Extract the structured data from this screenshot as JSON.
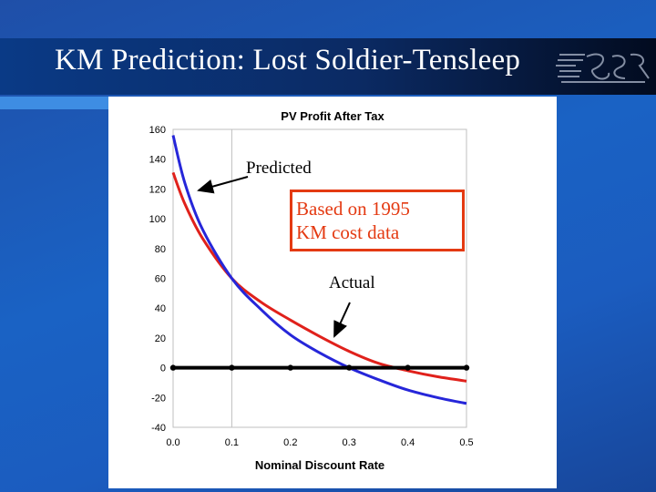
{
  "slide": {
    "title": "KM Prediction: Lost Soldier-Tensleep"
  },
  "annotations": {
    "predicted": "Predicted",
    "based_on_line1": "Based on 1995",
    "based_on_line2": "KM cost data",
    "actual": "Actual"
  },
  "colors": {
    "predicted": "#e0211b",
    "actual": "#2626d9",
    "zero_line": "#000000",
    "box_border": "#e43a12",
    "plot_background": "#ffffff",
    "grid": "#bfbfbf"
  },
  "chart_data": {
    "type": "line",
    "title": "PV Profit After Tax",
    "xlabel": "Nominal Discount Rate",
    "ylabel": "",
    "xlim": [
      0,
      0.5
    ],
    "ylim": [
      -40,
      160
    ],
    "x_ticks": [
      "0.0",
      "0.1",
      "0.2",
      "0.3",
      "0.4",
      "0.5"
    ],
    "y_ticks": [
      "-40",
      "-20",
      "0",
      "20",
      "40",
      "60",
      "80",
      "100",
      "120",
      "140",
      "160"
    ],
    "grid": "vertical gridlines at 0.1 and 0.5",
    "series": [
      {
        "name": "Predicted",
        "color": "#e0211b",
        "x": [
          0,
          0.02,
          0.05,
          0.1,
          0.15,
          0.2,
          0.25,
          0.3,
          0.35,
          0.4,
          0.45,
          0.5
        ],
        "values": [
          131,
          110,
          87,
          60,
          44,
          32,
          21,
          11,
          3,
          -2,
          -6,
          -9
        ]
      },
      {
        "name": "Actual",
        "color": "#2626d9",
        "x": [
          0,
          0.02,
          0.05,
          0.1,
          0.15,
          0.2,
          0.25,
          0.3,
          0.35,
          0.4,
          0.45,
          0.5
        ],
        "values": [
          156,
          124,
          93,
          60,
          39,
          22,
          10,
          0,
          -8,
          -15,
          -20,
          -24
        ]
      },
      {
        "name": "Zero line",
        "color": "#000000",
        "x": [
          0,
          0.1,
          0.2,
          0.3,
          0.4,
          0.5
        ],
        "values": [
          0,
          0,
          0,
          0,
          0,
          0
        ]
      }
    ]
  }
}
